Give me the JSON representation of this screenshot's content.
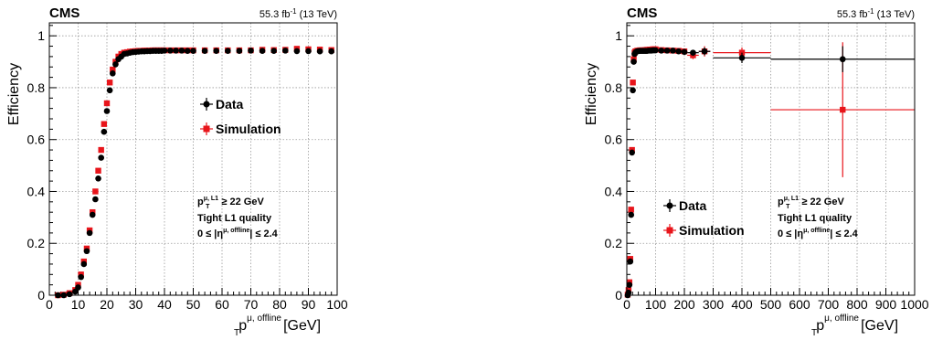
{
  "figure": {
    "experiment_label": "CMS",
    "lumi_value": "55.3 fb",
    "lumi_exponent": "-1",
    "lumi_energy": "(13 TeV)",
    "ylabel": "Efficiency",
    "xlabel_main": "p",
    "xlabel_sub": "T",
    "xlabel_sup": "μ, offline",
    "xlabel_unit": "[GeV]",
    "legend_data": "Data",
    "legend_sim": "Simulation",
    "cut_p": "p",
    "cut_sub": "T",
    "cut_sup": "μ, L1",
    "cut_rest": " ≥ 22 GeV",
    "quality": "Tight L1 quality",
    "eta_left": "0 ≤ |η",
    "eta_sup": "μ, offline",
    "eta_right": "| ≤ 2.4",
    "colors": {
      "data": "#000000",
      "simulation": "#e8151b"
    }
  },
  "chart_data": [
    {
      "type": "scatter",
      "xlim": [
        0,
        100
      ],
      "ylim": [
        0,
        1.05
      ],
      "xticks": [
        0,
        10,
        20,
        30,
        40,
        50,
        60,
        70,
        80,
        90,
        100
      ],
      "yticks": [
        0,
        0.2,
        0.4,
        0.6,
        0.8,
        1
      ],
      "ytick_labels": [
        "0",
        "0.2",
        "0.4",
        "0.6",
        "0.8",
        "1"
      ],
      "grid": true,
      "legend_position": "middle",
      "series": [
        {
          "name": "Data",
          "marker": "circle",
          "color": "#000000",
          "x": [
            3,
            5,
            7,
            9,
            10,
            11,
            12,
            13,
            14,
            15,
            16,
            17,
            18,
            19,
            20,
            21,
            22,
            23,
            24,
            25,
            26,
            27,
            28,
            29,
            30,
            31,
            32,
            33,
            34,
            35,
            36,
            37,
            38,
            39,
            40,
            42,
            44,
            46,
            48,
            50,
            54,
            58,
            62,
            66,
            70,
            74,
            78,
            82,
            86,
            90,
            94,
            98
          ],
          "y": [
            0.0,
            0.0,
            0.004,
            0.014,
            0.03,
            0.07,
            0.12,
            0.17,
            0.24,
            0.31,
            0.37,
            0.45,
            0.53,
            0.63,
            0.71,
            0.79,
            0.855,
            0.89,
            0.91,
            0.92,
            0.93,
            0.932,
            0.935,
            0.937,
            0.938,
            0.939,
            0.94,
            0.94,
            0.941,
            0.941,
            0.942,
            0.942,
            0.942,
            0.942,
            0.943,
            0.943,
            0.943,
            0.943,
            0.942,
            0.942,
            0.942,
            0.942,
            0.942,
            0.942,
            0.943,
            0.942,
            0.942,
            0.943,
            0.941,
            0.941,
            0.94,
            0.94
          ]
        },
        {
          "name": "Simulation",
          "marker": "square",
          "color": "#e8151b",
          "x": [
            3,
            5,
            7,
            9,
            10,
            11,
            12,
            13,
            14,
            15,
            16,
            17,
            18,
            19,
            20,
            21,
            22,
            23,
            24,
            25,
            26,
            27,
            28,
            29,
            30,
            31,
            32,
            33,
            34,
            35,
            36,
            37,
            38,
            39,
            40,
            42,
            44,
            46,
            48,
            50,
            54,
            58,
            62,
            66,
            70,
            74,
            78,
            82,
            86,
            90,
            94,
            98
          ],
          "y": [
            0.0,
            0.002,
            0.008,
            0.02,
            0.04,
            0.08,
            0.13,
            0.18,
            0.25,
            0.32,
            0.4,
            0.48,
            0.56,
            0.66,
            0.74,
            0.82,
            0.87,
            0.9,
            0.92,
            0.93,
            0.935,
            0.937,
            0.939,
            0.94,
            0.941,
            0.942,
            0.942,
            0.943,
            0.943,
            0.943,
            0.944,
            0.944,
            0.944,
            0.944,
            0.944,
            0.944,
            0.944,
            0.944,
            0.944,
            0.944,
            0.944,
            0.944,
            0.944,
            0.944,
            0.944,
            0.946,
            0.945,
            0.946,
            0.95,
            0.948,
            0.947,
            0.945
          ]
        }
      ]
    },
    {
      "type": "scatter",
      "xlim": [
        0,
        1000
      ],
      "ylim": [
        0,
        1.05
      ],
      "xticks": [
        0,
        100,
        200,
        300,
        400,
        500,
        600,
        700,
        800,
        900,
        1000
      ],
      "yticks": [
        0,
        0.2,
        0.4,
        0.6,
        0.8,
        1
      ],
      "ytick_labels": [
        "0",
        "0.2",
        "0.4",
        "0.6",
        "0.8",
        "1"
      ],
      "grid": true,
      "legend_position": "bottom-left",
      "series": [
        {
          "name": "Data",
          "marker": "circle",
          "color": "#000000",
          "x": [
            3,
            6,
            9,
            12,
            15,
            18,
            21,
            24,
            27,
            30,
            35,
            40,
            45,
            50,
            55,
            60,
            65,
            70,
            75,
            80,
            85,
            90,
            95,
            100,
            120,
            140,
            160,
            180,
            200,
            230,
            270,
            400,
            750
          ],
          "y": [
            0.0,
            0.01,
            0.04,
            0.13,
            0.31,
            0.55,
            0.79,
            0.9,
            0.93,
            0.936,
            0.94,
            0.941,
            0.942,
            0.942,
            0.942,
            0.942,
            0.942,
            0.942,
            0.943,
            0.943,
            0.943,
            0.944,
            0.944,
            0.944,
            0.943,
            0.943,
            0.943,
            0.94,
            0.938,
            0.935,
            0.94,
            0.915,
            0.91
          ],
          "x_err": [
            0,
            0,
            0,
            0,
            0,
            0,
            0,
            0,
            0,
            0,
            0,
            0,
            0,
            0,
            0,
            0,
            0,
            0,
            0,
            0,
            0,
            0,
            0,
            0,
            10,
            10,
            10,
            10,
            10,
            20,
            20,
            100,
            250
          ],
          "y_err": [
            0,
            0,
            0,
            0,
            0,
            0,
            0,
            0,
            0,
            0,
            0,
            0,
            0,
            0,
            0,
            0,
            0,
            0,
            0,
            0,
            0,
            0,
            0,
            0,
            0.005,
            0.005,
            0.006,
            0.007,
            0.008,
            0.01,
            0.015,
            0.02,
            0.05
          ]
        },
        {
          "name": "Simulation",
          "marker": "square",
          "color": "#e8151b",
          "x": [
            3,
            6,
            9,
            12,
            15,
            18,
            21,
            24,
            27,
            30,
            35,
            40,
            45,
            50,
            55,
            60,
            65,
            70,
            75,
            80,
            85,
            90,
            95,
            100,
            120,
            140,
            160,
            180,
            200,
            230,
            270,
            400,
            750
          ],
          "y": [
            0.002,
            0.02,
            0.05,
            0.14,
            0.33,
            0.56,
            0.82,
            0.91,
            0.935,
            0.94,
            0.942,
            0.943,
            0.944,
            0.944,
            0.944,
            0.944,
            0.945,
            0.946,
            0.946,
            0.947,
            0.947,
            0.948,
            0.948,
            0.948,
            0.945,
            0.944,
            0.943,
            0.942,
            0.94,
            0.925,
            0.94,
            0.935,
            0.715
          ],
          "x_err": [
            0,
            0,
            0,
            0,
            0,
            0,
            0,
            0,
            0,
            0,
            0,
            0,
            0,
            0,
            0,
            0,
            0,
            0,
            0,
            0,
            0,
            0,
            0,
            0,
            10,
            10,
            10,
            10,
            10,
            20,
            20,
            100,
            250
          ],
          "y_err": [
            0,
            0,
            0,
            0,
            0,
            0,
            0,
            0,
            0,
            0,
            0,
            0,
            0,
            0,
            0,
            0,
            0,
            0,
            0,
            0,
            0,
            0,
            0,
            0,
            0.005,
            0.005,
            0.006,
            0.007,
            0.008,
            0.015,
            0.02,
            0.02,
            0.26
          ]
        }
      ]
    }
  ]
}
